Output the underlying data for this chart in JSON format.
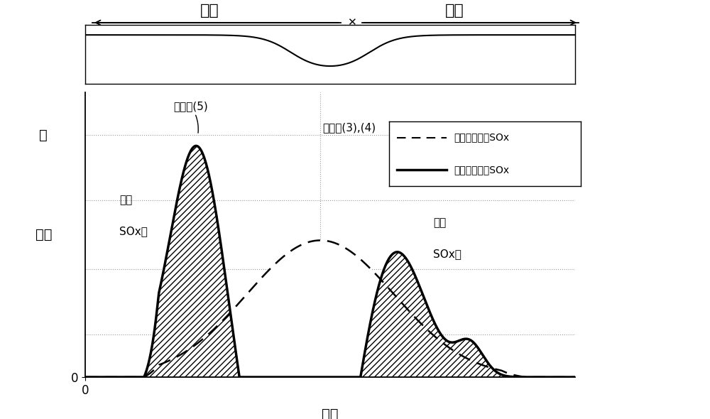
{
  "xlabel": "时间",
  "ylabel": "浓度",
  "ylabel_high": "高",
  "rich_label": "丰富",
  "poor_label": "贫乏",
  "legend_dashed": "供给废气中的SOx",
  "legend_solid": "放出废气中的SOx",
  "ann1": "反应式(5)",
  "ann2": "反应式(3),(4)",
  "ann3_line1": "第一",
  "ann3_line2": "SOx峰",
  "ann4_line1": "第二",
  "ann4_line2": "SOx峰",
  "bg_color": "#ffffff",
  "line_color": "#000000",
  "grid_color": "#999999"
}
